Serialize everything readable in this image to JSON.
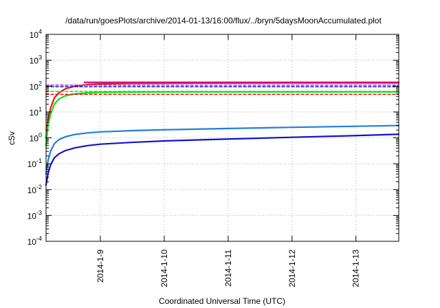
{
  "chart_data": {
    "type": "line",
    "title": "/data/run/goesPlots/archive/2014-01-13/16:00/flux/../bryn/5daysMoonAccumulated.plot",
    "xlabel": "Coordinated Universal Time (UTC)",
    "ylabel": "cSv",
    "x_ticks": [
      {
        "label": "2014-1-9",
        "day": 1
      },
      {
        "label": "2014-1-10",
        "day": 2
      },
      {
        "label": "2014-1-11",
        "day": 3
      },
      {
        "label": "2014-1-12",
        "day": 4
      },
      {
        "label": "2014-1-13",
        "day": 5
      }
    ],
    "xlim_days": [
      0.15,
      5.67
    ],
    "y_scale": "log",
    "ylim": [
      0.0001,
      10000
    ],
    "y_ticks": [
      {
        "base": "10",
        "exp": "-4",
        "value": 0.0001
      },
      {
        "base": "10",
        "exp": "-3",
        "value": 0.001
      },
      {
        "base": "10",
        "exp": "-2",
        "value": 0.01
      },
      {
        "base": "10",
        "exp": "-1",
        "value": 0.1
      },
      {
        "base": "10",
        "exp": "0",
        "value": 1
      },
      {
        "base": "10",
        "exp": "1",
        "value": 10
      },
      {
        "base": "10",
        "exp": "2",
        "value": 100
      },
      {
        "base": "10",
        "exp": "3",
        "value": 1000
      },
      {
        "base": "10",
        "exp": "4",
        "value": 10000
      }
    ],
    "grid": true,
    "series": [
      {
        "color": "#ee1111",
        "dash": false,
        "points": [
          [
            0.15,
            1.0
          ],
          [
            0.18,
            5
          ],
          [
            0.22,
            14
          ],
          [
            0.28,
            35
          ],
          [
            0.35,
            55
          ],
          [
            0.45,
            78
          ],
          [
            0.6,
            100
          ],
          [
            0.8,
            115
          ],
          [
            1.0,
            122
          ],
          [
            1.5,
            128
          ],
          [
            2.5,
            131
          ],
          [
            4.0,
            132
          ],
          [
            5.67,
            133
          ]
        ]
      },
      {
        "color": "#11dd11",
        "dash": false,
        "points": [
          [
            0.15,
            0.5
          ],
          [
            0.18,
            3
          ],
          [
            0.22,
            8
          ],
          [
            0.28,
            20
          ],
          [
            0.35,
            32
          ],
          [
            0.45,
            42
          ],
          [
            0.6,
            50
          ],
          [
            0.8,
            55
          ],
          [
            1.0,
            57
          ],
          [
            1.5,
            59
          ],
          [
            2.5,
            60
          ],
          [
            4.0,
            60
          ],
          [
            5.67,
            60
          ]
        ]
      },
      {
        "color": "#1e7de0",
        "dash": false,
        "points": [
          [
            0.15,
            0.04
          ],
          [
            0.18,
            0.13
          ],
          [
            0.22,
            0.3
          ],
          [
            0.28,
            0.6
          ],
          [
            0.35,
            0.85
          ],
          [
            0.45,
            1.1
          ],
          [
            0.6,
            1.35
          ],
          [
            0.8,
            1.55
          ],
          [
            1.0,
            1.7
          ],
          [
            1.5,
            1.9
          ],
          [
            2.0,
            2.05
          ],
          [
            3.0,
            2.3
          ],
          [
            4.0,
            2.55
          ],
          [
            5.0,
            2.8
          ],
          [
            5.67,
            3.0
          ]
        ]
      },
      {
        "color": "#1111cc",
        "dash": false,
        "points": [
          [
            0.15,
            0.015
          ],
          [
            0.18,
            0.04
          ],
          [
            0.22,
            0.09
          ],
          [
            0.28,
            0.17
          ],
          [
            0.35,
            0.24
          ],
          [
            0.45,
            0.32
          ],
          [
            0.6,
            0.41
          ],
          [
            0.8,
            0.5
          ],
          [
            1.0,
            0.57
          ],
          [
            1.5,
            0.67
          ],
          [
            2.0,
            0.76
          ],
          [
            3.0,
            0.9
          ],
          [
            4.0,
            1.05
          ],
          [
            5.0,
            1.22
          ],
          [
            5.67,
            1.38
          ]
        ]
      },
      {
        "color": "#cc22cc",
        "dash": true,
        "points": [
          [
            0.15,
            110
          ],
          [
            5.67,
            110
          ]
        ]
      },
      {
        "color": "#1111cc",
        "dash": true,
        "points": [
          [
            0.15,
            95
          ],
          [
            5.67,
            95
          ]
        ]
      },
      {
        "color": "#11dd11",
        "dash": true,
        "points": [
          [
            0.15,
            62
          ],
          [
            5.67,
            62
          ]
        ]
      },
      {
        "color": "#ee1111",
        "dash": true,
        "points": [
          [
            0.15,
            48
          ],
          [
            5.67,
            48
          ]
        ]
      },
      {
        "color": "#cc1177",
        "dash": false,
        "points": [
          [
            0.75,
            140
          ],
          [
            5.67,
            140
          ]
        ]
      }
    ]
  }
}
